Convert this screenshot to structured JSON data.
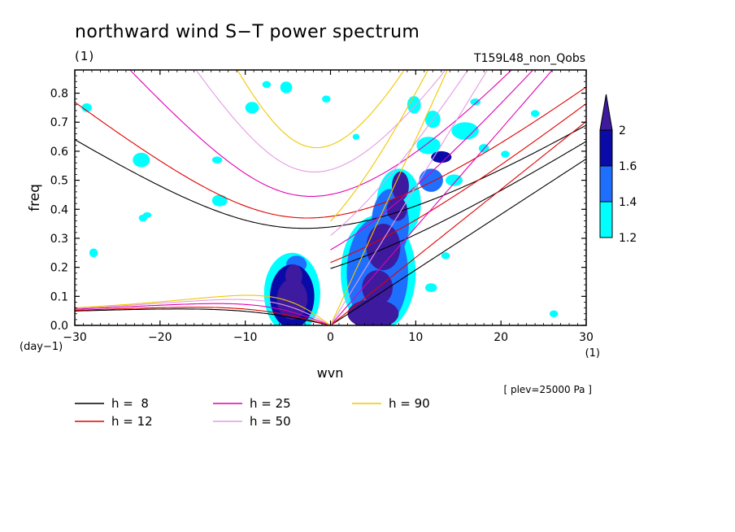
{
  "chart_data": {
    "type": "contour",
    "title": "northward wind S−T power spectrum",
    "units_label": "(1)",
    "experiment_label": "T159L48_non_Qobs",
    "level_label": "[ plev=25000 Pa ]",
    "xlabel": "wvn",
    "xlabel_units": "(1)",
    "ylabel": "freq",
    "ylabel_units": "(day−1)",
    "xlim": [
      -30,
      30
    ],
    "ylim": [
      0,
      0.88
    ],
    "x_ticks": [
      -30,
      -20,
      -10,
      0,
      10,
      20,
      30
    ],
    "x_tick_labels": [
      "−30",
      "−20",
      "−10",
      "0",
      "10",
      "20",
      "30"
    ],
    "y_ticks": [
      0,
      0.1,
      0.2,
      0.3,
      0.4,
      0.5,
      0.6,
      0.7,
      0.8
    ],
    "y_tick_labels": [
      "0.0",
      "0.1",
      "0.2",
      "0.3",
      "0.4",
      "0.5",
      "0.6",
      "0.7",
      "0.8"
    ],
    "colorbar": {
      "levels": [
        1.2,
        1.4,
        1.6,
        2
      ],
      "labels": [
        "1.2",
        "1.4",
        "1.6",
        "2"
      ],
      "colors": [
        "#00ffff",
        "#1f6fff",
        "#0a0aa8",
        "#3d1a9e"
      ]
    },
    "dispersion_curves": [
      {
        "h_label": "h =  8",
        "h": 8,
        "color": "#000000"
      },
      {
        "h_label": "h = 12",
        "h": 12,
        "color": "#e00000"
      },
      {
        "h_label": "h = 25",
        "h": 25,
        "color": "#e000b4"
      },
      {
        "h_label": "h = 50",
        "h": 50,
        "color": "#e49be4"
      },
      {
        "h_label": "h = 90",
        "h": 90,
        "color": "#f0c800"
      }
    ],
    "power_regions": [
      {
        "x": -4.3,
        "y": 0.17,
        "rx": 1.0,
        "ry": 0.04,
        "level": 3
      },
      {
        "x": -4.5,
        "y": 0.09,
        "rx": 1.8,
        "ry": 0.07,
        "level": 3
      },
      {
        "x": -4.5,
        "y": 0.1,
        "rx": 2.6,
        "ry": 0.11,
        "level": 2
      },
      {
        "x": -4.5,
        "y": 0.11,
        "rx": 3.3,
        "ry": 0.14,
        "level": 0
      },
      {
        "x": -4.0,
        "y": 0.21,
        "rx": 1.2,
        "ry": 0.03,
        "level": 1
      },
      {
        "x": 5.0,
        "y": 0.04,
        "rx": 3.0,
        "ry": 0.05,
        "level": 3
      },
      {
        "x": 5.5,
        "y": 0.13,
        "rx": 1.8,
        "ry": 0.06,
        "level": 3
      },
      {
        "x": 6.2,
        "y": 0.27,
        "rx": 2.0,
        "ry": 0.08,
        "level": 3
      },
      {
        "x": 7.8,
        "y": 0.4,
        "rx": 1.2,
        "ry": 0.04,
        "level": 3
      },
      {
        "x": 8.2,
        "y": 0.48,
        "rx": 1.0,
        "ry": 0.05,
        "level": 3
      },
      {
        "x": 5.5,
        "y": 0.18,
        "rx": 3.6,
        "ry": 0.19,
        "level": 1
      },
      {
        "x": 7.0,
        "y": 0.35,
        "rx": 2.2,
        "ry": 0.12,
        "level": 1
      },
      {
        "x": 5.6,
        "y": 0.18,
        "rx": 4.4,
        "ry": 0.2,
        "level": 0
      },
      {
        "x": 8.0,
        "y": 0.42,
        "rx": 2.6,
        "ry": 0.12,
        "level": 0
      },
      {
        "x": 11.8,
        "y": 0.5,
        "rx": 1.4,
        "ry": 0.04,
        "level": 1
      },
      {
        "x": 11.5,
        "y": 0.62,
        "rx": 1.4,
        "ry": 0.03,
        "level": 0
      },
      {
        "x": 13.0,
        "y": 0.58,
        "rx": 1.2,
        "ry": 0.02,
        "level": 2
      },
      {
        "x": 15.8,
        "y": 0.67,
        "rx": 1.6,
        "ry": 0.03,
        "level": 0
      },
      {
        "x": 12.0,
        "y": 0.71,
        "rx": 0.9,
        "ry": 0.03,
        "level": 0
      },
      {
        "x": 9.8,
        "y": 0.76,
        "rx": 0.8,
        "ry": 0.03,
        "level": 0
      },
      {
        "x": 14.5,
        "y": 0.5,
        "rx": 1.0,
        "ry": 0.02,
        "level": 0
      },
      {
        "x": -22.2,
        "y": 0.57,
        "rx": 1.0,
        "ry": 0.025,
        "level": 0
      },
      {
        "x": -28.6,
        "y": 0.75,
        "rx": 0.6,
        "ry": 0.015,
        "level": 0
      },
      {
        "x": -9.2,
        "y": 0.75,
        "rx": 0.8,
        "ry": 0.02,
        "level": 0
      },
      {
        "x": -5.2,
        "y": 0.82,
        "rx": 0.7,
        "ry": 0.02,
        "level": 0
      },
      {
        "x": -7.5,
        "y": 0.83,
        "rx": 0.5,
        "ry": 0.012,
        "level": 0
      },
      {
        "x": -13.0,
        "y": 0.43,
        "rx": 0.9,
        "ry": 0.02,
        "level": 0
      },
      {
        "x": -22.0,
        "y": 0.37,
        "rx": 0.5,
        "ry": 0.012,
        "level": 0
      },
      {
        "x": -27.8,
        "y": 0.25,
        "rx": 0.5,
        "ry": 0.015,
        "level": 0
      },
      {
        "x": -21.5,
        "y": 0.38,
        "rx": 0.5,
        "ry": 0.01,
        "level": 0
      },
      {
        "x": 18.0,
        "y": 0.61,
        "rx": 0.6,
        "ry": 0.015,
        "level": 0
      },
      {
        "x": 20.5,
        "y": 0.59,
        "rx": 0.5,
        "ry": 0.012,
        "level": 0
      },
      {
        "x": 24.0,
        "y": 0.73,
        "rx": 0.5,
        "ry": 0.012,
        "level": 0
      },
      {
        "x": 26.2,
        "y": 0.04,
        "rx": 0.5,
        "ry": 0.012,
        "level": 0
      },
      {
        "x": 13.5,
        "y": 0.24,
        "rx": 0.5,
        "ry": 0.012,
        "level": 0
      },
      {
        "x": 11.8,
        "y": 0.13,
        "rx": 0.7,
        "ry": 0.015,
        "level": 0
      },
      {
        "x": 17.0,
        "y": 0.77,
        "rx": 0.6,
        "ry": 0.012,
        "level": 0
      },
      {
        "x": -13.3,
        "y": 0.57,
        "rx": 0.6,
        "ry": 0.012,
        "level": 0
      },
      {
        "x": -0.5,
        "y": 0.78,
        "rx": 0.5,
        "ry": 0.012,
        "level": 0
      },
      {
        "x": 3.0,
        "y": 0.65,
        "rx": 0.4,
        "ry": 0.01,
        "level": 0
      }
    ]
  }
}
